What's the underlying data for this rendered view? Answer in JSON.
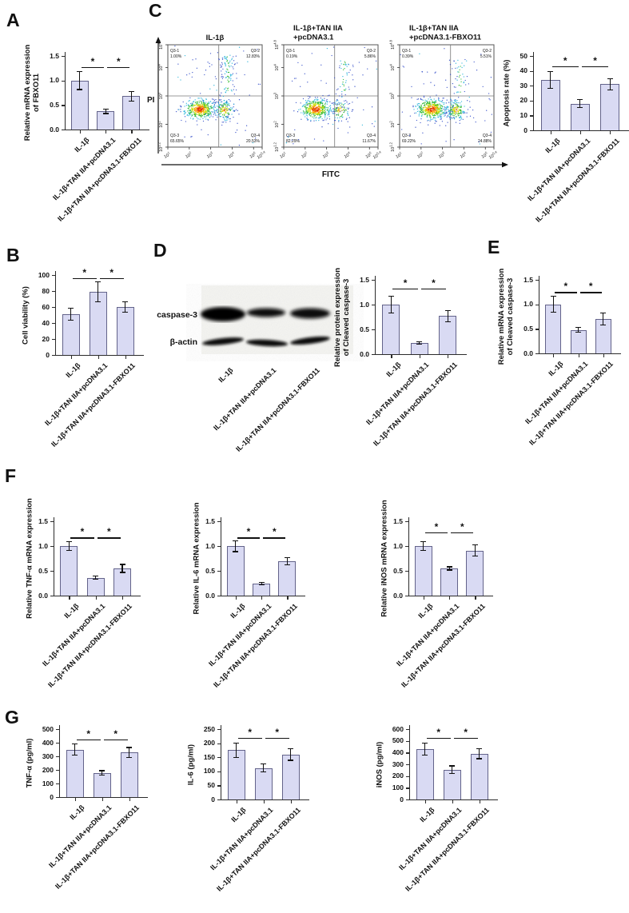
{
  "panel_labels": [
    "A",
    "B",
    "C",
    "D",
    "E",
    "F",
    "G"
  ],
  "sig_symbol": "*",
  "categories": [
    "IL-1β",
    "IL-1β+TAN IIA+pcDNA3.1",
    "IL-1β+TAN IIA+pcDNA3.1-FBXO11"
  ],
  "colors": {
    "bar_fill": "#d9daf3",
    "bar_border": "#63638a",
    "axis": "#2b2b2b",
    "error_bar": "#111111"
  },
  "chart_data": [
    {
      "id": "A",
      "type": "bar",
      "panel": "A",
      "ylabel": "Relative mRNA expression\nof FBXO11",
      "ylim": [
        0,
        1.5
      ],
      "yticks": [
        0,
        0.5,
        1,
        1.5
      ],
      "decimals": 1,
      "categories_ref": "categories",
      "values": [
        1.0,
        0.37,
        0.68
      ],
      "errors": [
        0.19,
        0.05,
        0.11
      ],
      "significance": [
        {
          "between": [
            0,
            1
          ],
          "label": "*"
        },
        {
          "between": [
            1,
            2
          ],
          "label": "*"
        }
      ]
    },
    {
      "id": "B",
      "type": "bar",
      "panel": "B",
      "ylabel": "Cell viability (%)",
      "ylim": [
        0,
        100
      ],
      "yticks": [
        0,
        20,
        40,
        60,
        80,
        100
      ],
      "decimals": 0,
      "categories_ref": "categories",
      "values": [
        51,
        79,
        60
      ],
      "errors": [
        8,
        13,
        7
      ],
      "significance": [
        {
          "between": [
            0,
            1
          ],
          "label": "*"
        },
        {
          "between": [
            1,
            2
          ],
          "label": "*"
        }
      ]
    },
    {
      "id": "C-apoptosis",
      "type": "bar",
      "panel": "C",
      "ylabel": "Apoptosis rate (%)",
      "ylim": [
        0,
        50
      ],
      "yticks": [
        0,
        10,
        20,
        30,
        40,
        50
      ],
      "decimals": 0,
      "categories_ref": "categories",
      "values": [
        34,
        18,
        31
      ],
      "errors": [
        6,
        3,
        4
      ],
      "significance": [
        {
          "between": [
            0,
            1
          ],
          "label": "*"
        },
        {
          "between": [
            1,
            2
          ],
          "label": "*"
        }
      ]
    },
    {
      "id": "D-protein",
      "type": "bar",
      "panel": "D",
      "ylabel": "Relative protein expression\nof Cleaved caspase-3",
      "ylim": [
        0,
        1.5
      ],
      "yticks": [
        0,
        0.5,
        1,
        1.5
      ],
      "decimals": 1,
      "categories_ref": "categories",
      "values": [
        1.0,
        0.23,
        0.77
      ],
      "errors": [
        0.18,
        0.03,
        0.12
      ],
      "significance": [
        {
          "between": [
            0,
            1
          ],
          "label": "*"
        },
        {
          "between": [
            1,
            2
          ],
          "label": "*"
        }
      ]
    },
    {
      "id": "E",
      "type": "bar",
      "panel": "E",
      "ylabel": "Relative mRNA expression\nof Cleaved caspase-3",
      "ylim": [
        0,
        1.5
      ],
      "yticks": [
        0,
        0.5,
        1,
        1.5
      ],
      "decimals": 1,
      "categories_ref": "categories",
      "values": [
        1.0,
        0.48,
        0.7
      ],
      "errors": [
        0.17,
        0.06,
        0.13
      ],
      "significance": [
        {
          "between": [
            0,
            1
          ],
          "label": "*"
        },
        {
          "between": [
            1,
            2
          ],
          "label": "*"
        }
      ]
    },
    {
      "id": "F-tnfa",
      "type": "bar",
      "panel": "F",
      "ylabel": "Relative TNF-α mRNA expression",
      "ylim": [
        0,
        1.5
      ],
      "yticks": [
        0,
        0.5,
        1,
        1.5
      ],
      "decimals": 1,
      "categories_ref": "categories",
      "values": [
        1.0,
        0.36,
        0.55
      ],
      "errors": [
        0.1,
        0.04,
        0.09
      ],
      "significance": [
        {
          "between": [
            0,
            1
          ],
          "label": "*"
        },
        {
          "between": [
            1,
            2
          ],
          "label": "*"
        }
      ]
    },
    {
      "id": "F-il6",
      "type": "bar",
      "panel": "F",
      "ylabel": "Relative IL-6 mRNA expression",
      "ylim": [
        0,
        1.5
      ],
      "yticks": [
        0,
        0.5,
        1,
        1.5
      ],
      "decimals": 1,
      "categories_ref": "categories",
      "values": [
        1.0,
        0.24,
        0.69
      ],
      "errors": [
        0.12,
        0.03,
        0.08
      ],
      "significance": [
        {
          "between": [
            0,
            1
          ],
          "label": "*"
        },
        {
          "between": [
            1,
            2
          ],
          "label": "*"
        }
      ]
    },
    {
      "id": "F-inos",
      "type": "bar",
      "panel": "F",
      "ylabel": "Relative iNOS mRNA expression",
      "ylim": [
        0,
        1.5
      ],
      "yticks": [
        0,
        0.5,
        1,
        1.5
      ],
      "decimals": 1,
      "categories_ref": "categories",
      "values": [
        1.0,
        0.55,
        0.91
      ],
      "errors": [
        0.1,
        0.04,
        0.12
      ],
      "significance": [
        {
          "between": [
            0,
            1
          ],
          "label": "*"
        },
        {
          "between": [
            1,
            2
          ],
          "label": "*"
        }
      ]
    },
    {
      "id": "G-tnfa",
      "type": "bar",
      "panel": "G",
      "ylabel": "TNF-α (pg/ml)",
      "ylim": [
        0,
        500
      ],
      "yticks": [
        0,
        100,
        200,
        300,
        400,
        500
      ],
      "decimals": 0,
      "categories_ref": "categories",
      "values": [
        350,
        178,
        328
      ],
      "errors": [
        45,
        20,
        40
      ],
      "significance": [
        {
          "between": [
            0,
            1
          ],
          "label": "*"
        },
        {
          "between": [
            1,
            2
          ],
          "label": "*"
        }
      ]
    },
    {
      "id": "G-il6",
      "type": "bar",
      "panel": "G",
      "ylabel": "IL-6 (pg/ml)",
      "ylim": [
        0,
        250
      ],
      "yticks": [
        0,
        50,
        100,
        150,
        200,
        250
      ],
      "decimals": 0,
      "categories_ref": "categories",
      "values": [
        175,
        112,
        160
      ],
      "errors": [
        28,
        15,
        22
      ],
      "significance": [
        {
          "between": [
            0,
            1
          ],
          "label": "*"
        },
        {
          "between": [
            1,
            2
          ],
          "label": "*"
        }
      ]
    },
    {
      "id": "G-inos",
      "type": "bar",
      "panel": "G",
      "ylabel": "iNOS (pg/ml)",
      "ylim": [
        0,
        600
      ],
      "yticks": [
        0,
        100,
        200,
        300,
        400,
        500,
        600
      ],
      "decimals": 0,
      "categories_ref": "categories",
      "values": [
        430,
        255,
        390
      ],
      "errors": [
        55,
        35,
        45
      ],
      "significance": [
        {
          "between": [
            0,
            1
          ],
          "label": "*"
        },
        {
          "between": [
            1,
            2
          ],
          "label": "*"
        }
      ]
    },
    {
      "id": "C-flow",
      "type": "scatter",
      "panel": "C",
      "xlabel": "FITC",
      "ylabel": "PI",
      "yticks": [
        "10^1.2",
        "10^2",
        "10^3",
        "10^4",
        "10^4.8"
      ],
      "xticks": [
        "10^1",
        "10^2",
        "10^3",
        "10^4",
        "10^5",
        "10^5.4"
      ],
      "plots": [
        {
          "title": "IL-1β",
          "quadrants": [
            {
              "name": "Q3-1",
              "value": "1.00%"
            },
            {
              "name": "Q3-2",
              "value": "12.83%"
            },
            {
              "name": "Q3-3",
              "value": "65.65%"
            },
            {
              "name": "Q3-4",
              "value": "20.53%"
            }
          ]
        },
        {
          "title": "IL-1β+TAN IIA\n+pcDNA3.1",
          "quadrants": [
            {
              "name": "Q3-1",
              "value": "0.19%"
            },
            {
              "name": "Q3-2",
              "value": "5.86%"
            },
            {
              "name": "Q3-3",
              "value": "82.29%"
            },
            {
              "name": "Q3-4",
              "value": "11.67%"
            }
          ]
        },
        {
          "title": "IL-1β+TAN IIA\n+pcDNA3.1-FBXO11",
          "quadrants": [
            {
              "name": "Q3-1",
              "value": "0.39%"
            },
            {
              "name": "Q3-2",
              "value": "5.51%"
            },
            {
              "name": "Q3-3",
              "value": "69.22%"
            },
            {
              "name": "Q3-4",
              "value": "24.88%"
            }
          ]
        }
      ]
    }
  ],
  "blot": {
    "rows": [
      "caspase-3",
      "β-actin"
    ],
    "lanes_ref": "categories"
  }
}
